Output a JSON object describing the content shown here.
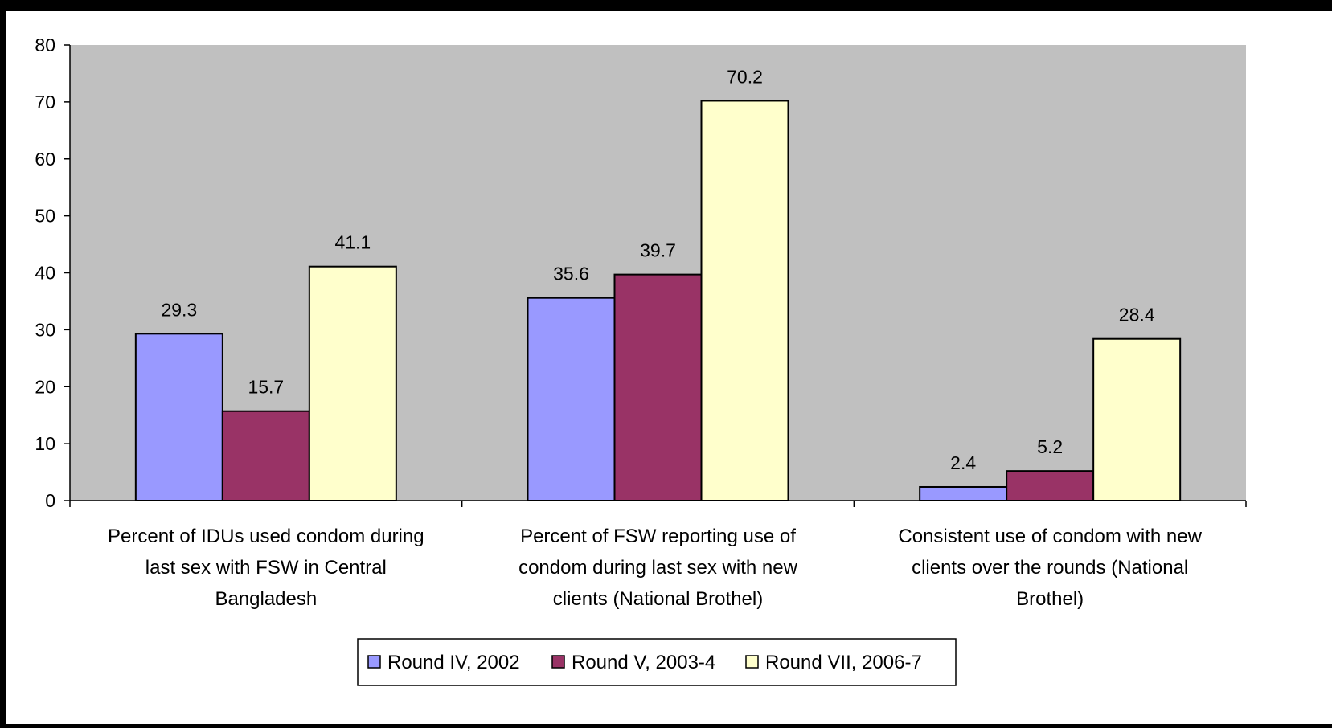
{
  "chart_data": {
    "type": "bar",
    "title": "",
    "xlabel": "",
    "ylabel": "",
    "ylim": [
      0,
      80
    ],
    "yticks": [
      0,
      10,
      20,
      30,
      40,
      50,
      60,
      70,
      80
    ],
    "grid": false,
    "legend_position": "bottom",
    "plot_background": "#c0c0c0",
    "categories": [
      [
        "Percent of IDUs used condom during",
        "last sex with FSW in Central",
        "Bangladesh"
      ],
      [
        "Percent of FSW reporting use of",
        "condom during last sex with new",
        "clients (National Brothel)"
      ],
      [
        "Consistent use of condom with new",
        "clients over the rounds (National",
        "Brothel)"
      ]
    ],
    "series": [
      {
        "name": "Round IV, 2002",
        "color": "#9999ff",
        "values": [
          29.3,
          35.6,
          2.4
        ]
      },
      {
        "name": "Round V, 2003-4",
        "color": "#993366",
        "values": [
          15.7,
          39.7,
          5.2
        ]
      },
      {
        "name": "Round VII, 2006-7",
        "color": "#ffffcc",
        "values": [
          41.1,
          70.2,
          28.4
        ]
      }
    ]
  }
}
